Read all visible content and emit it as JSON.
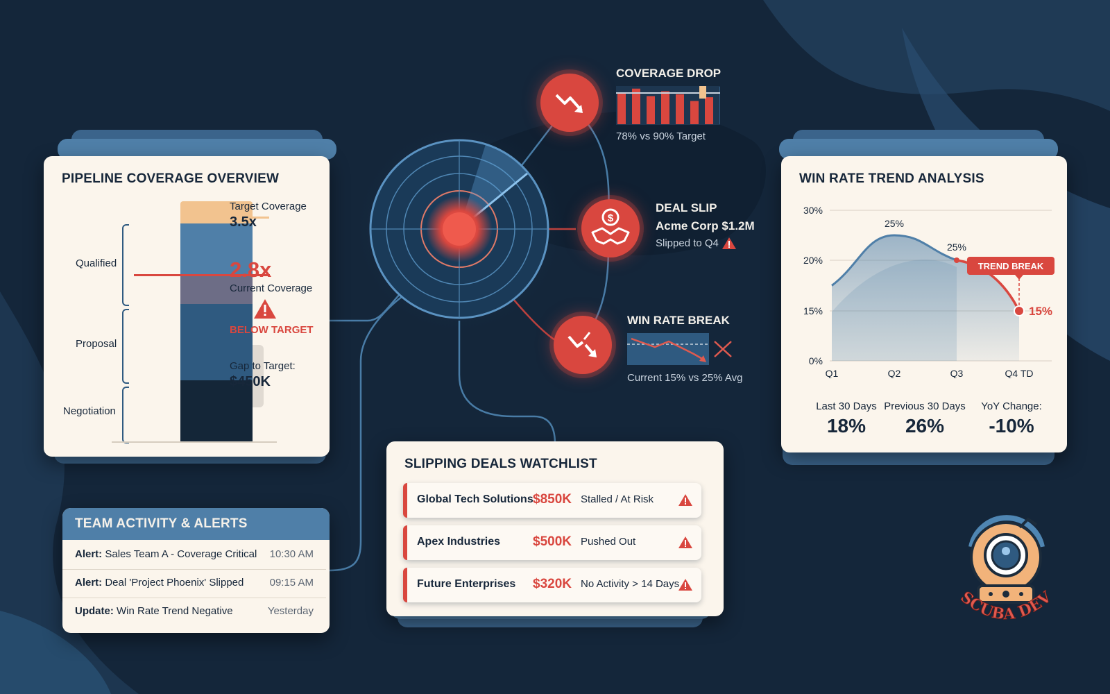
{
  "colors": {
    "background": "#14263a",
    "card": "#fbf5ec",
    "accent_blue": "#4f7fa8",
    "alert_red": "#d9473f",
    "target_orange": "#f2c38f"
  },
  "pipeline": {
    "title": "PIPELINE COVERAGE OVERVIEW",
    "stages": [
      "Qualified",
      "Proposal",
      "Negotiation"
    ],
    "target_label": "Target Coverage",
    "target_value": "3.5x",
    "current_value": "2.8x",
    "current_label": "Current Coverage",
    "warning_text": "BELOW TARGET",
    "gap_label": "Gap to Target:",
    "gap_value": "$450K"
  },
  "signals": {
    "coverage_drop": {
      "title": "COVERAGE DROP",
      "caption": "78% vs 90% Target",
      "icon": "trend-down-icon",
      "bars": [
        0.85,
        0.95,
        0.75,
        0.88,
        0.8,
        0.62,
        0.72
      ]
    },
    "deal_slip": {
      "title": "DEAL SLIP",
      "deal": "Acme Corp $1.2M",
      "caption": "Slipped to Q4",
      "icon": "handshake-dollar-icon"
    },
    "win_rate_break": {
      "title": "WIN RATE BREAK",
      "caption": "Current 15% vs 25% Avg",
      "icon": "broken-trend-icon"
    }
  },
  "win_rate": {
    "title": "WIN RATE TREND ANALYSIS",
    "badge": "TREND BREAK",
    "point_labels": [
      "25%",
      "25%",
      "15%"
    ],
    "stats": [
      {
        "label": "Last 30 Days",
        "value": "18%"
      },
      {
        "label": "Previous 30 Days",
        "value": "26%"
      },
      {
        "label": "YoY Change:",
        "value": "-10%"
      }
    ]
  },
  "chart_data": {
    "type": "area",
    "title": "WIN RATE TREND ANALYSIS",
    "xlabel": "",
    "ylabel": "",
    "categories": [
      "Q1",
      "Q2",
      "Q3",
      "Q4 TD"
    ],
    "y_ticks": [
      "0%",
      "15%",
      "20%",
      "30%"
    ],
    "series": [
      {
        "values": [
          17.5,
          25,
          20,
          15
        ]
      }
    ]
  },
  "alerts": {
    "title": "TEAM ACTIVITY & ALERTS",
    "items": [
      {
        "prefix": "Alert:",
        "text": "Sales Team A - Coverage Critical",
        "time": "10:30 AM"
      },
      {
        "prefix": "Alert:",
        "text": "Deal 'Project Phoenix' Slipped",
        "time": "09:15 AM"
      },
      {
        "prefix": "Update:",
        "text": "Win Rate Trend Negative",
        "time": "Yesterday"
      }
    ]
  },
  "watchlist": {
    "title": "SLIPPING DEALS WATCHLIST",
    "deals": [
      {
        "name": "Global Tech Solutions",
        "amount": "$850K",
        "status": "Stalled / At Risk"
      },
      {
        "name": "Apex Industries",
        "amount": "$500K",
        "status": "Pushed Out"
      },
      {
        "name": "Future Enterprises",
        "amount": "$320K",
        "status": "No Activity > 14 Days"
      }
    ]
  },
  "logo": {
    "text": "SCUBA DEV"
  }
}
